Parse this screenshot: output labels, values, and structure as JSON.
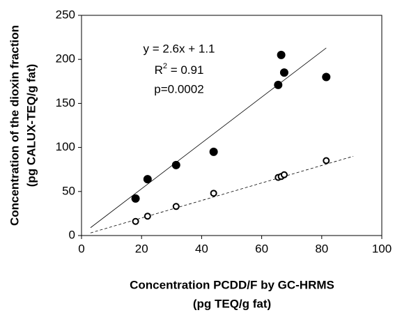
{
  "chart_data": {
    "type": "scatter",
    "xlabel": [
      "Concentration PCDD/F by GC-HRMS",
      "(pg TEQ/g fat)"
    ],
    "ylabel": [
      "Concentration of the dioxin fraction",
      "(pg CALUX-TEQ/g fat)"
    ],
    "xlim": [
      0,
      100
    ],
    "xticks": [
      0,
      20,
      40,
      60,
      80,
      100
    ],
    "ylim": [
      0,
      250
    ],
    "yticks": [
      0,
      50,
      100,
      150,
      200,
      250
    ],
    "series": [
      {
        "marker": "filled",
        "color": "#000000",
        "x": [
          18,
          22,
          31.5,
          44,
          65.5,
          66.5,
          67.5,
          81.5
        ],
        "values": [
          42,
          64,
          80,
          95,
          171,
          205,
          185,
          180
        ]
      },
      {
        "marker": "open",
        "color": "#000000",
        "x": [
          18,
          22,
          31.5,
          44,
          65.5,
          66.5,
          67.5,
          81.5
        ],
        "values": [
          16,
          22,
          33,
          48,
          66,
          67,
          69,
          85
        ]
      }
    ],
    "trendlines": [
      {
        "style": "solid",
        "x": [
          3,
          81.5
        ],
        "values": [
          8.9,
          213
        ]
      },
      {
        "style": "dashed",
        "x": [
          3,
          90.5
        ],
        "values": [
          3,
          90
        ]
      }
    ],
    "annotations": [
      "y = 2.6x + 1.1",
      {
        "text": "R",
        "sup": "2",
        "rest": " = 0.91"
      },
      "p=0.0002"
    ]
  }
}
